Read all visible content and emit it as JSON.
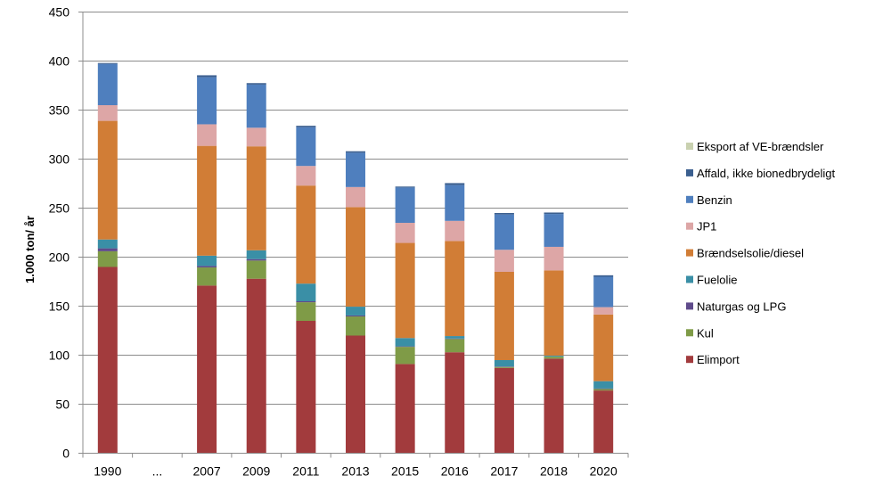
{
  "chart_data": {
    "type": "bar",
    "stacked": true,
    "title": "",
    "xlabel": "",
    "ylabel": "1.000 ton/ år",
    "ylim": [
      0,
      450
    ],
    "yticks": [
      0,
      50,
      100,
      150,
      200,
      250,
      300,
      350,
      400,
      450
    ],
    "grid": true,
    "legend_position": "right",
    "categories": [
      "1990",
      "...",
      "2007",
      "2009",
      "2011",
      "2013",
      "2015",
      "2016",
      "2017",
      "2018",
      "2020"
    ],
    "series": [
      {
        "name": "Elimport",
        "color": "#A23B3D",
        "values": [
          190,
          null,
          171,
          178,
          135,
          120,
          91,
          103,
          87,
          96.5,
          64
        ]
      },
      {
        "name": "Kul",
        "color": "#7F9B47",
        "values": [
          16,
          null,
          18.5,
          18.5,
          19,
          19.5,
          17.5,
          13.5,
          1,
          2,
          1.5
        ]
      },
      {
        "name": "Naturgas og LPG",
        "color": "#5F4B8B",
        "values": [
          3,
          null,
          1.5,
          1.5,
          1,
          1,
          0.5,
          0.5,
          0.5,
          0,
          0.5
        ]
      },
      {
        "name": "Fuelolie",
        "color": "#3A8FA6",
        "values": [
          9,
          null,
          10.5,
          9,
          18,
          9,
          8.5,
          2.5,
          6.5,
          1,
          7.5
        ]
      },
      {
        "name": "Brændselsolie/diesel",
        "color": "#D17D36",
        "values": [
          121,
          null,
          112,
          106,
          100,
          101.5,
          97,
          97,
          90,
          87,
          68
        ]
      },
      {
        "name": "JP1",
        "color": "#DDA6A6",
        "values": [
          16,
          null,
          22,
          19,
          20,
          20.5,
          20.5,
          20.5,
          22.5,
          24,
          7.5
        ]
      },
      {
        "name": "Benzin",
        "color": "#4F7FBE",
        "values": [
          42,
          null,
          48,
          44,
          39.5,
          35,
          36,
          36.5,
          36,
          33.5,
          31
        ]
      },
      {
        "name": "Affald, ikke bionedbrydeligt",
        "color": "#3B5F8F",
        "values": [
          1,
          null,
          2,
          1.5,
          1.5,
          1.5,
          1,
          2,
          1.5,
          1.5,
          1.5
        ]
      },
      {
        "name": "Eksport af VE-brændsler",
        "color": "#C9D1B0",
        "values": [
          0,
          null,
          0,
          0,
          0,
          0,
          0,
          0,
          0,
          0,
          0
        ]
      }
    ],
    "legend_order": [
      "Eksport af VE-brændsler",
      "Affald, ikke bionedbrydeligt",
      "Benzin",
      "JP1",
      "Brændselsolie/diesel",
      "Fuelolie",
      "Naturgas og LPG",
      "Kul",
      "Elimport"
    ]
  }
}
